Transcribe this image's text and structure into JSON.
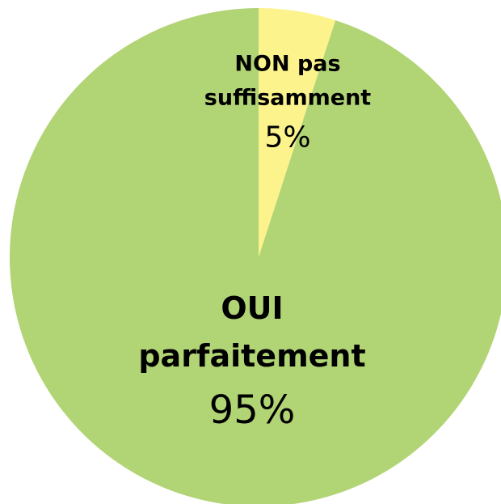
{
  "chart_data": {
    "type": "pie",
    "categories": [
      "NON pas suffisamment",
      "OUI parfaitement"
    ],
    "values": [
      5,
      95
    ],
    "value_labels": [
      "5%",
      "95%"
    ],
    "colors": [
      "#fcf38c",
      "#b1d475"
    ]
  }
}
